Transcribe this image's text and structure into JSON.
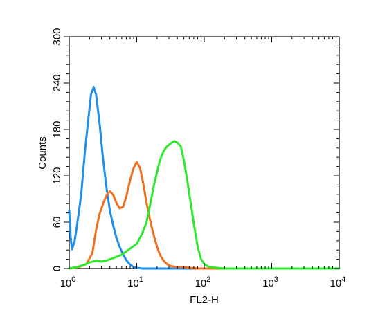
{
  "chart_data": {
    "type": "line",
    "title": "",
    "xlabel": "FL2-H",
    "ylabel": "Counts",
    "xscale": "log",
    "xlim": [
      1,
      10000
    ],
    "ylim": [
      0,
      300
    ],
    "x_ticks": [
      {
        "value": 1,
        "base": "10",
        "exp": "0"
      },
      {
        "value": 10,
        "base": "10",
        "exp": "1"
      },
      {
        "value": 100,
        "base": "10",
        "exp": "2"
      },
      {
        "value": 1000,
        "base": "10",
        "exp": "3"
      },
      {
        "value": 10000,
        "base": "10",
        "exp": "4"
      }
    ],
    "y_ticks": [
      {
        "value": 0,
        "label": "0"
      },
      {
        "value": 60,
        "label": "60"
      },
      {
        "value": 120,
        "label": "120"
      },
      {
        "value": 180,
        "label": "180"
      },
      {
        "value": 240,
        "label": "240"
      },
      {
        "value": 300,
        "label": "300"
      }
    ],
    "grid": false,
    "legend": "none",
    "series": [
      {
        "color": "#1f8fe8",
        "points": [
          [
            1.0,
            75
          ],
          [
            1.05,
            40
          ],
          [
            1.1,
            25
          ],
          [
            1.2,
            35
          ],
          [
            1.3,
            55
          ],
          [
            1.5,
            95
          ],
          [
            1.7,
            150
          ],
          [
            1.9,
            190
          ],
          [
            2.1,
            225
          ],
          [
            2.3,
            235
          ],
          [
            2.5,
            225
          ],
          [
            2.8,
            190
          ],
          [
            3.1,
            150
          ],
          [
            3.5,
            110
          ],
          [
            4.0,
            75
          ],
          [
            4.5,
            55
          ],
          [
            5.0,
            40
          ],
          [
            5.6,
            28
          ],
          [
            6.3,
            18
          ],
          [
            7.1,
            10
          ],
          [
            8.0,
            5
          ],
          [
            9.0,
            2
          ],
          [
            10,
            1
          ],
          [
            12,
            0
          ],
          [
            20,
            0
          ],
          [
            100,
            0
          ],
          [
            10000,
            0
          ]
        ]
      },
      {
        "color": "#f07020",
        "points": [
          [
            1.0,
            0
          ],
          [
            1.4,
            2
          ],
          [
            1.8,
            6
          ],
          [
            2.2,
            20
          ],
          [
            2.5,
            50
          ],
          [
            2.8,
            70
          ],
          [
            3.2,
            85
          ],
          [
            3.6,
            95
          ],
          [
            4.0,
            100
          ],
          [
            4.5,
            95
          ],
          [
            5.0,
            85
          ],
          [
            5.6,
            78
          ],
          [
            6.3,
            80
          ],
          [
            7.1,
            95
          ],
          [
            8.0,
            115
          ],
          [
            9.0,
            130
          ],
          [
            10,
            138
          ],
          [
            11.2,
            130
          ],
          [
            12.5,
            110
          ],
          [
            14,
            85
          ],
          [
            16,
            60
          ],
          [
            18,
            42
          ],
          [
            20,
            28
          ],
          [
            22,
            18
          ],
          [
            25,
            10
          ],
          [
            28,
            6
          ],
          [
            32,
            3
          ],
          [
            40,
            2
          ],
          [
            50,
            2
          ],
          [
            60,
            1
          ],
          [
            80,
            0
          ],
          [
            10000,
            0
          ]
        ]
      },
      {
        "color": "#2ee82e",
        "points": [
          [
            1.0,
            0
          ],
          [
            1.3,
            2
          ],
          [
            1.7,
            5
          ],
          [
            2.0,
            8
          ],
          [
            2.5,
            10
          ],
          [
            3.0,
            9
          ],
          [
            3.5,
            10
          ],
          [
            4.0,
            12
          ],
          [
            5.0,
            15
          ],
          [
            6.0,
            18
          ],
          [
            7.0,
            22
          ],
          [
            8.0,
            26
          ],
          [
            10,
            32
          ],
          [
            12,
            45
          ],
          [
            14,
            60
          ],
          [
            16,
            85
          ],
          [
            18,
            108
          ],
          [
            20,
            125
          ],
          [
            22,
            140
          ],
          [
            25,
            152
          ],
          [
            28,
            158
          ],
          [
            32,
            162
          ],
          [
            36,
            165
          ],
          [
            40,
            163
          ],
          [
            45,
            158
          ],
          [
            50,
            140
          ],
          [
            56,
            115
          ],
          [
            63,
            85
          ],
          [
            71,
            55
          ],
          [
            80,
            28
          ],
          [
            90,
            12
          ],
          [
            100,
            6
          ],
          [
            112,
            3
          ],
          [
            125,
            2
          ],
          [
            150,
            1
          ],
          [
            200,
            0
          ],
          [
            10000,
            0
          ]
        ]
      }
    ]
  }
}
